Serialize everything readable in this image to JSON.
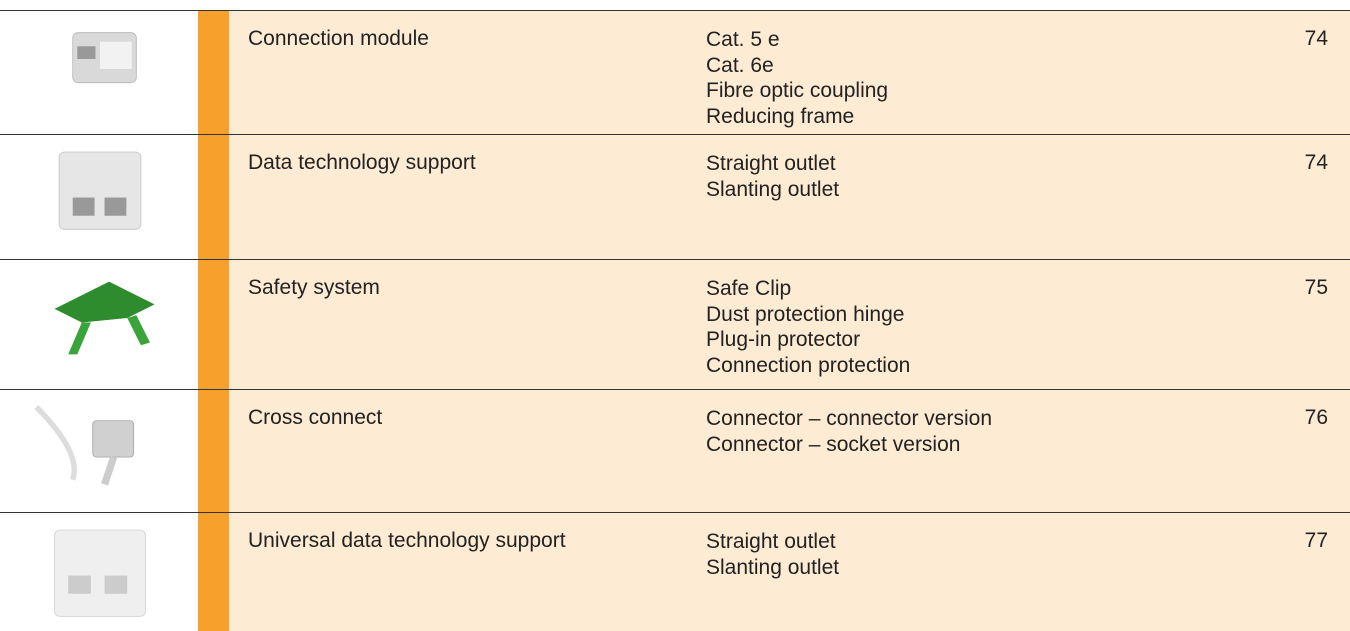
{
  "table": {
    "rows": [
      {
        "name": "Connection module",
        "items": [
          "Cat. 5 e",
          "Cat. 6e",
          "Fibre optic coupling",
          "Reducing frame"
        ],
        "page": "74"
      },
      {
        "name": "Data technology support",
        "items": [
          "Straight outlet",
          "Slanting outlet"
        ],
        "page": "74"
      },
      {
        "name": "Safety system",
        "items": [
          "Safe Clip",
          "Dust protection hinge",
          "Plug-in protector",
          "Connection protection"
        ],
        "page": "75"
      },
      {
        "name": "Cross connect",
        "items": [
          "Connector – connector version",
          "Connector – socket version"
        ],
        "page": "76"
      },
      {
        "name": "Universal data technology support",
        "items": [
          "Straight outlet",
          "Slanting outlet"
        ],
        "page": "77"
      }
    ]
  }
}
